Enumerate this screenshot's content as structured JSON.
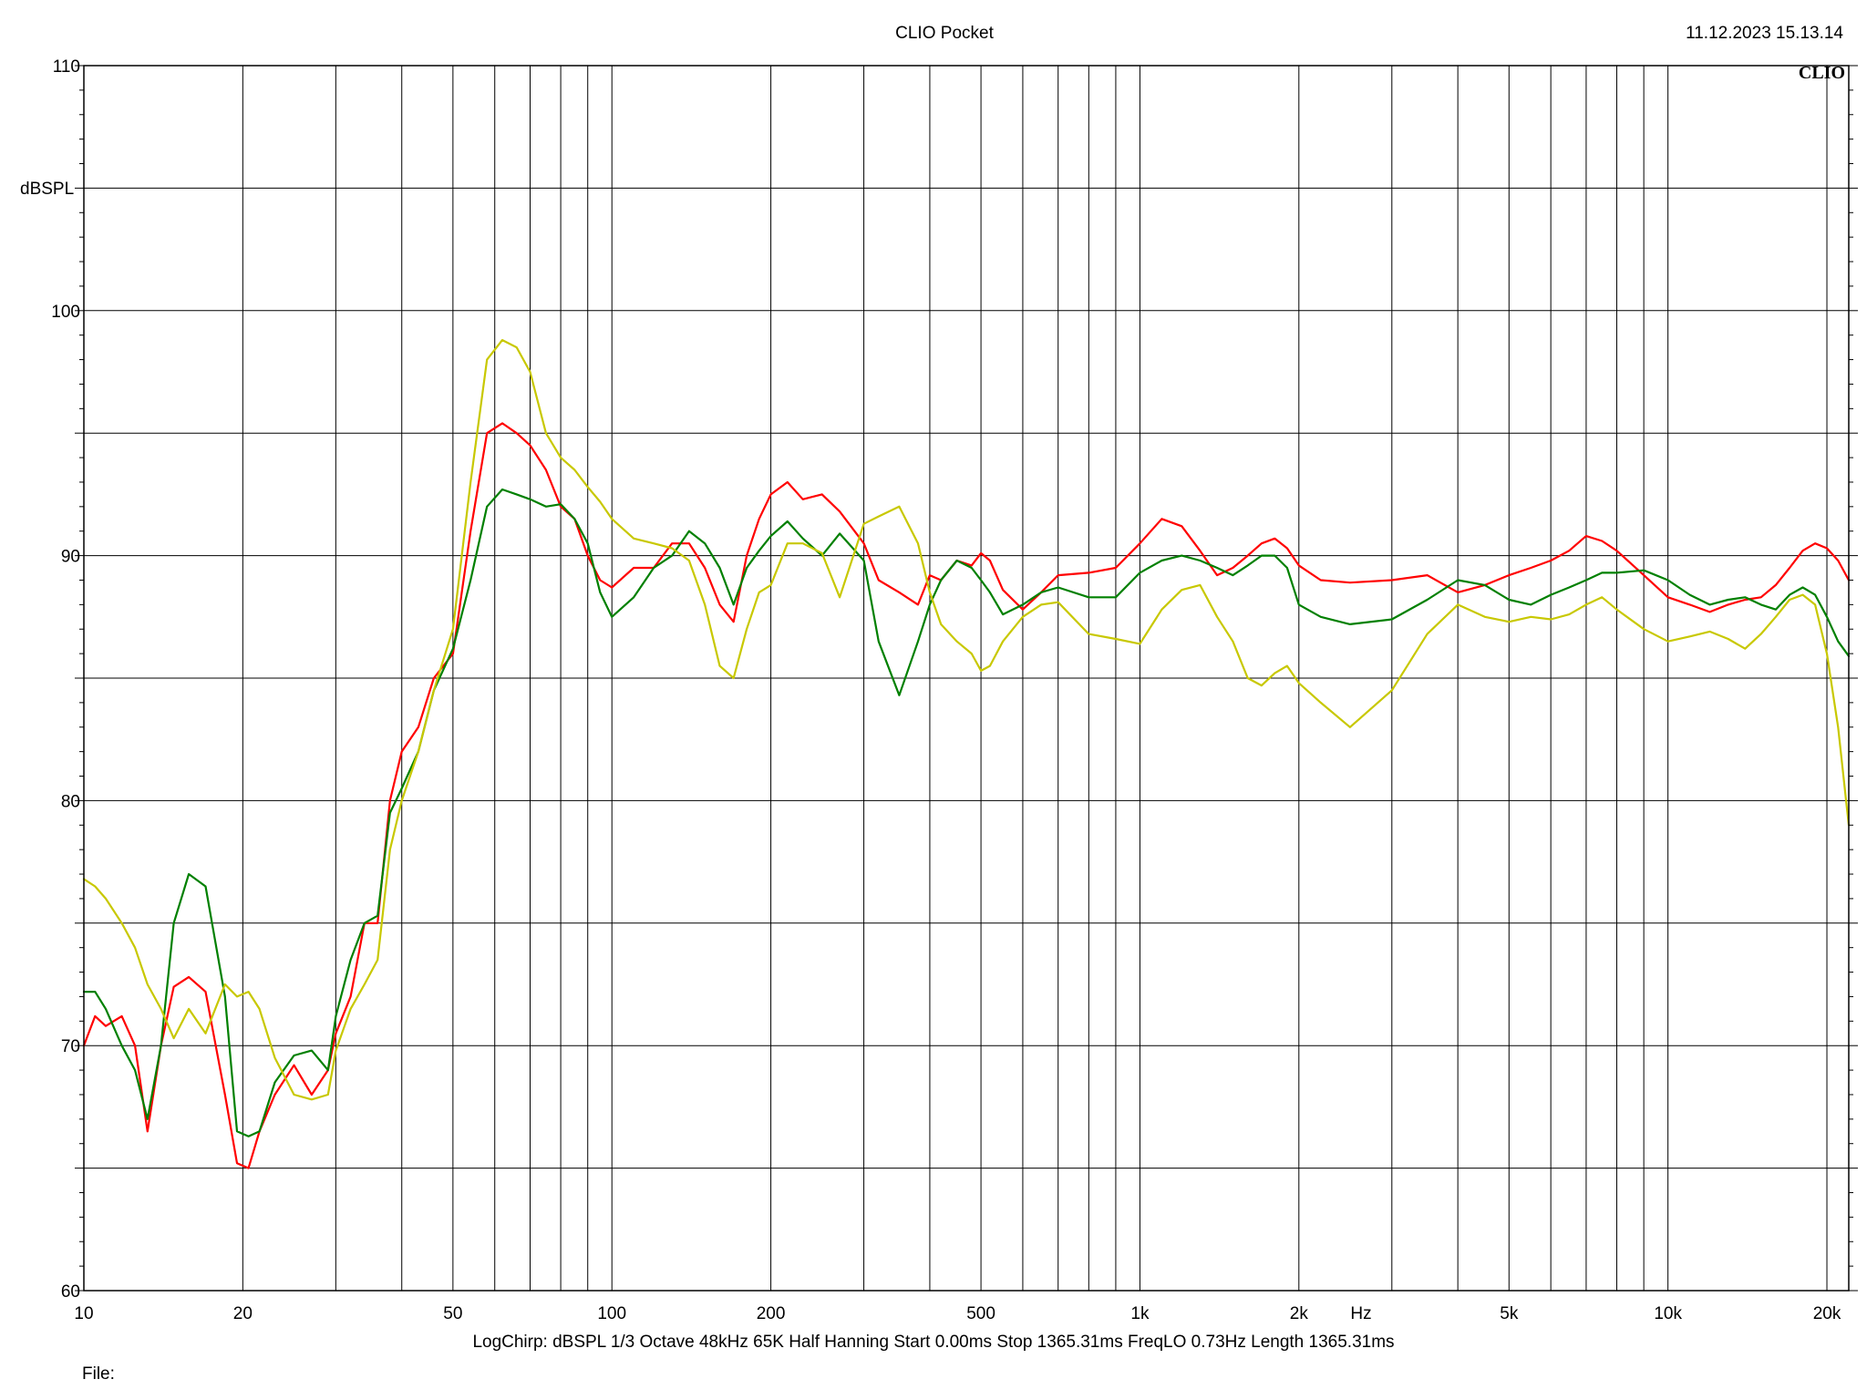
{
  "header": {
    "title": "CLIO Pocket",
    "timestamp": "11.12.2023 15.13.14",
    "logo": "CLIO"
  },
  "footer": {
    "settings": "LogChirp:  dBSPL   1/3 Octave   48kHz   65K   Half Hanning   Start 0.00ms    Stop 1365.31ms    FreqLO 0.73Hz    Length 1365.31ms",
    "file_label": "File:"
  },
  "chart_data": {
    "type": "line",
    "title": "CLIO Pocket",
    "xlabel": "Hz",
    "ylabel": "dBSPL",
    "xscale": "log",
    "xlim": [
      10,
      22000
    ],
    "ylim": [
      60,
      110
    ],
    "grid": true,
    "x_ticks": [
      {
        "value": 10,
        "label": "10"
      },
      {
        "value": 20,
        "label": "20"
      },
      {
        "value": 50,
        "label": "50"
      },
      {
        "value": 100,
        "label": "100"
      },
      {
        "value": 200,
        "label": "200"
      },
      {
        "value": 500,
        "label": "500"
      },
      {
        "value": 1000,
        "label": "1k"
      },
      {
        "value": 2000,
        "label": "2k"
      },
      {
        "value": 5000,
        "label": "5k"
      },
      {
        "value": 10000,
        "label": "10k"
      },
      {
        "value": 20000,
        "label": "20k"
      }
    ],
    "y_ticks": [
      {
        "value": 60,
        "label": "60"
      },
      {
        "value": 70,
        "label": "70"
      },
      {
        "value": 80,
        "label": "80"
      },
      {
        "value": 90,
        "label": "90"
      },
      {
        "value": 100,
        "label": "100"
      },
      {
        "value": 110,
        "label": "110"
      }
    ],
    "series": [
      {
        "color": "#ff0000",
        "x": [
          10,
          10.5,
          11,
          11.8,
          12.5,
          13.2,
          14,
          14.8,
          15.8,
          17,
          18.5,
          19.5,
          20.5,
          21.5,
          23,
          25,
          27,
          29,
          30,
          32,
          34,
          36,
          38,
          40,
          43,
          46,
          50,
          54,
          58,
          62,
          66,
          70,
          75,
          80,
          85,
          90,
          95,
          100,
          110,
          120,
          130,
          140,
          150,
          160,
          170,
          180,
          190,
          200,
          215,
          230,
          250,
          270,
          300,
          320,
          350,
          380,
          400,
          420,
          450,
          480,
          500,
          520,
          550,
          600,
          650,
          700,
          800,
          900,
          1000,
          1100,
          1200,
          1300,
          1400,
          1500,
          1600,
          1700,
          1800,
          1900,
          2000,
          2200,
          2500,
          3000,
          3500,
          4000,
          4500,
          5000,
          5500,
          6000,
          6500,
          7000,
          7500,
          8000,
          9000,
          10000,
          11000,
          12000,
          13000,
          14000,
          15000,
          16000,
          17000,
          18000,
          19000,
          20000,
          21000,
          22000
        ],
        "y": [
          70,
          71.2,
          70.8,
          71.2,
          70,
          66.5,
          70,
          72.4,
          72.8,
          72.2,
          68,
          65.2,
          65,
          66.5,
          68,
          69.2,
          68,
          69,
          70.5,
          72,
          75,
          75,
          80,
          82,
          83,
          85,
          86,
          91,
          95,
          95.4,
          95,
          94.5,
          93.5,
          92,
          91.5,
          90,
          89,
          88.7,
          89.5,
          89.5,
          90.5,
          90.5,
          89.5,
          88,
          87.3,
          90,
          91.5,
          92.5,
          93,
          92.3,
          92.5,
          91.8,
          90.5,
          89,
          88.5,
          88,
          89.2,
          89,
          89.8,
          89.6,
          90.1,
          89.8,
          88.6,
          87.8,
          88.5,
          89.2,
          89.3,
          89.5,
          90.5,
          91.5,
          91.2,
          90.2,
          89.2,
          89.5,
          90,
          90.5,
          90.7,
          90.3,
          89.6,
          89,
          88.9,
          89,
          89.2,
          88.5,
          88.8,
          89.2,
          89.5,
          89.8,
          90.2,
          90.8,
          90.6,
          90.2,
          89.2,
          88.3,
          88,
          87.7,
          88,
          88.2,
          88.3,
          88.8,
          89.5,
          90.2,
          90.5,
          90.3,
          89.8,
          89
        ]
      },
      {
        "color": "#008000",
        "x": [
          10,
          10.5,
          11,
          11.8,
          12.5,
          13.2,
          14,
          14.8,
          15.8,
          17,
          18.5,
          19.5,
          20.5,
          21.5,
          23,
          25,
          27,
          29,
          30,
          32,
          34,
          36,
          38,
          40,
          43,
          46,
          50,
          54,
          58,
          62,
          66,
          70,
          75,
          80,
          85,
          90,
          95,
          100,
          110,
          120,
          130,
          140,
          150,
          160,
          170,
          180,
          190,
          200,
          215,
          230,
          250,
          270,
          300,
          320,
          350,
          380,
          400,
          420,
          450,
          480,
          500,
          520,
          550,
          600,
          650,
          700,
          800,
          900,
          1000,
          1100,
          1200,
          1300,
          1400,
          1500,
          1600,
          1700,
          1800,
          1900,
          2000,
          2200,
          2500,
          3000,
          3500,
          4000,
          4500,
          5000,
          5500,
          6000,
          6500,
          7000,
          7500,
          8000,
          9000,
          10000,
          11000,
          12000,
          13000,
          14000,
          15000,
          16000,
          17000,
          18000,
          19000,
          20000,
          21000,
          22000
        ],
        "y": [
          72.2,
          72.2,
          71.5,
          70,
          69,
          67,
          70,
          75,
          77,
          76.5,
          72,
          66.5,
          66.3,
          66.5,
          68.5,
          69.6,
          69.8,
          69,
          71.2,
          73.5,
          75,
          75.3,
          79.5,
          80.5,
          82,
          84.5,
          86.2,
          89,
          92,
          92.7,
          92.5,
          92.3,
          92,
          92.1,
          91.5,
          90.5,
          88.5,
          87.5,
          88.3,
          89.5,
          90,
          91,
          90.5,
          89.5,
          88,
          89.5,
          90.2,
          90.8,
          91.4,
          90.7,
          90,
          90.9,
          89.8,
          86.5,
          84.3,
          86.5,
          88,
          89,
          89.8,
          89.5,
          89,
          88.5,
          87.6,
          88,
          88.5,
          88.7,
          88.3,
          88.3,
          89.3,
          89.8,
          90,
          89.8,
          89.5,
          89.2,
          89.6,
          90,
          90,
          89.5,
          88,
          87.5,
          87.2,
          87.4,
          88.2,
          89,
          88.8,
          88.2,
          88,
          88.4,
          88.7,
          89,
          89.3,
          89.3,
          89.4,
          89,
          88.4,
          88,
          88.2,
          88.3,
          88,
          87.8,
          88.4,
          88.7,
          88.4,
          87.5,
          86.5,
          85.9
        ]
      },
      {
        "color": "#c8c800",
        "x": [
          10,
          10.5,
          11,
          11.8,
          12.5,
          13.2,
          14,
          14.8,
          15.8,
          17,
          18.5,
          19.5,
          20.5,
          21.5,
          23,
          25,
          27,
          29,
          30,
          32,
          34,
          36,
          38,
          40,
          43,
          46,
          50,
          54,
          58,
          62,
          66,
          70,
          75,
          80,
          85,
          90,
          95,
          100,
          110,
          120,
          130,
          140,
          150,
          160,
          170,
          180,
          190,
          200,
          215,
          230,
          250,
          270,
          300,
          320,
          350,
          380,
          400,
          420,
          450,
          480,
          500,
          520,
          550,
          600,
          650,
          700,
          800,
          900,
          1000,
          1100,
          1200,
          1300,
          1400,
          1500,
          1600,
          1700,
          1800,
          1900,
          2000,
          2200,
          2500,
          3000,
          3500,
          4000,
          4500,
          5000,
          5500,
          6000,
          6500,
          7000,
          7500,
          8000,
          9000,
          10000,
          11000,
          12000,
          13000,
          14000,
          15000,
          16000,
          17000,
          18000,
          19000,
          20000,
          21000,
          22000
        ],
        "y": [
          76.8,
          76.5,
          76,
          75,
          74,
          72.5,
          71.5,
          70.3,
          71.5,
          70.5,
          72.5,
          72,
          72.2,
          71.5,
          69.5,
          68,
          67.8,
          68,
          69.8,
          71.5,
          72.5,
          73.5,
          78,
          80,
          82,
          84.5,
          87,
          93,
          98,
          98.8,
          98.5,
          97.5,
          95,
          94,
          93.5,
          92.8,
          92.2,
          91.5,
          90.7,
          90.5,
          90.3,
          89.8,
          88,
          85.5,
          85,
          87,
          88.5,
          88.8,
          90.5,
          90.5,
          90.1,
          88.3,
          91.3,
          91.6,
          92,
          90.5,
          88.5,
          87.2,
          86.5,
          86,
          85.3,
          85.5,
          86.5,
          87.5,
          88,
          88.1,
          86.8,
          86.6,
          86.4,
          87.8,
          88.6,
          88.8,
          87.5,
          86.5,
          85,
          84.7,
          85.2,
          85.5,
          84.8,
          84,
          83,
          84.5,
          86.8,
          88,
          87.5,
          87.3,
          87.5,
          87.4,
          87.6,
          88,
          88.3,
          87.8,
          87,
          86.5,
          86.7,
          86.9,
          86.6,
          86.2,
          86.8,
          87.5,
          88.2,
          88.4,
          88,
          86,
          83,
          79
        ]
      }
    ]
  }
}
